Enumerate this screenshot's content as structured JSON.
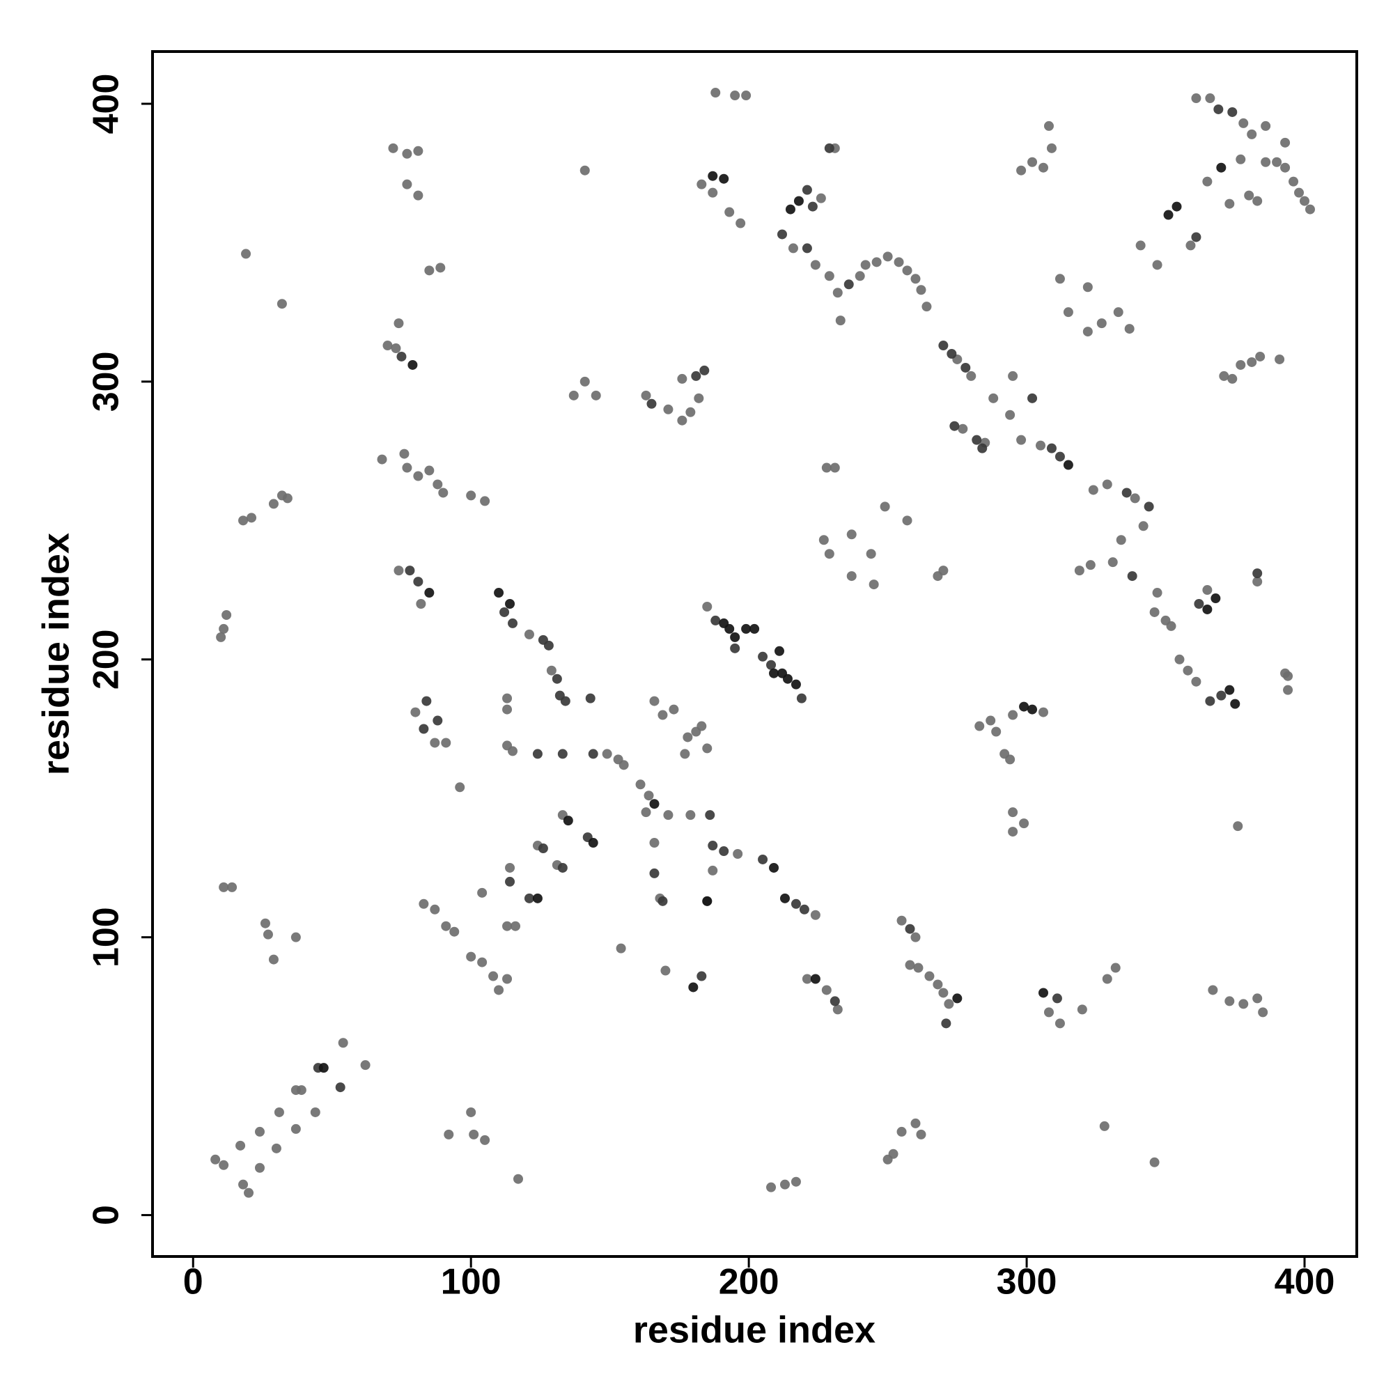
{
  "chart_data": {
    "type": "scatter",
    "x_label": "residue index",
    "y_label": "residue index",
    "xlim": [
      -14.6,
      418.8
    ],
    "ylim": [
      -14.9,
      418.8
    ],
    "xticks": [
      0,
      100,
      200,
      300,
      400
    ],
    "yticks": [
      0,
      100,
      200,
      300,
      400
    ],
    "series": [
      {
        "color": "#6e6e6e",
        "x": [
          8,
          11,
          17,
          18,
          20,
          24,
          24,
          30,
          31,
          37,
          37,
          39,
          44,
          54,
          62,
          92,
          100,
          101,
          105,
          117,
          208,
          213,
          217,
          250,
          252,
          255,
          260,
          262,
          328,
          346,
          11,
          14,
          26,
          27,
          29,
          37,
          83,
          87,
          91,
          94,
          100,
          104,
          108,
          110,
          113,
          113,
          116,
          104,
          114,
          124,
          131,
          133,
          154,
          170,
          185,
          187,
          168,
          166,
          163,
          161,
          164,
          171,
          179,
          196,
          224,
          221,
          228,
          232,
          255,
          260,
          258,
          261,
          265,
          268,
          270,
          272,
          308,
          312,
          320,
          329,
          332,
          367,
          373,
          378,
          383,
          385,
          96,
          80,
          87,
          91,
          113,
          115,
          113,
          113,
          129,
          149,
          153,
          155,
          121,
          74,
          82,
          166,
          169,
          173,
          178,
          181,
          185,
          177,
          183,
          185,
          283,
          287,
          289,
          292,
          294,
          295,
          306,
          295,
          299,
          295,
          376,
          355,
          358,
          361,
          393,
          394,
          394,
          347,
          346,
          350,
          352,
          365,
          383,
          11,
          10,
          12,
          18,
          21,
          29,
          32,
          34,
          19,
          32,
          68,
          76,
          77,
          81,
          85,
          88,
          90,
          100,
          105,
          70,
          74,
          73,
          85,
          89,
          72,
          77,
          81,
          77,
          81,
          137,
          141,
          145,
          141,
          163,
          171,
          176,
          179,
          182,
          176,
          188,
          195,
          199,
          183,
          187,
          193,
          197,
          216,
          226,
          231,
          224,
          229,
          232,
          233,
          240,
          242,
          246,
          250,
          254,
          257,
          260,
          262,
          264,
          275,
          280,
          277,
          285,
          288,
          294,
          295,
          298,
          305,
          228,
          231,
          227,
          229,
          237,
          237,
          244,
          245,
          249,
          257,
          268,
          270,
          298,
          302,
          306,
          309,
          308,
          312,
          315,
          322,
          322,
          327,
          333,
          337,
          319,
          323,
          324,
          329,
          331,
          334,
          339,
          342,
          341,
          347,
          359,
          361,
          366,
          378,
          381,
          386,
          377,
          365,
          380,
          383,
          386,
          390,
          393,
          396,
          398,
          400,
          402,
          393,
          373,
          371,
          374,
          377,
          381,
          384,
          391
        ],
        "values": [
          20,
          18,
          25,
          11,
          8,
          17,
          30,
          24,
          37,
          31,
          45,
          45,
          37,
          62,
          54,
          29,
          37,
          29,
          27,
          13,
          10,
          11,
          12,
          20,
          22,
          30,
          33,
          29,
          32,
          19,
          118,
          118,
          105,
          101,
          92,
          100,
          112,
          110,
          104,
          102,
          93,
          91,
          86,
          81,
          85,
          104,
          104,
          116,
          125,
          133,
          126,
          144,
          96,
          88,
          113,
          124,
          114,
          134,
          145,
          155,
          151,
          144,
          144,
          130,
          108,
          85,
          81,
          74,
          106,
          100,
          90,
          89,
          86,
          83,
          80,
          76,
          73,
          69,
          74,
          85,
          89,
          81,
          77,
          76,
          78,
          73,
          154,
          181,
          170,
          170,
          169,
          167,
          186,
          182,
          196,
          166,
          164,
          162,
          209,
          232,
          220,
          185,
          180,
          182,
          172,
          174,
          168,
          166,
          176,
          219,
          176,
          178,
          174,
          166,
          164,
          180,
          181,
          145,
          141,
          138,
          140,
          200,
          196,
          192,
          195,
          194,
          189,
          224,
          217,
          214,
          212,
          225,
          228,
          211,
          208,
          216,
          250,
          251,
          256,
          259,
          258,
          346,
          328,
          272,
          274,
          269,
          266,
          268,
          263,
          260,
          259,
          257,
          313,
          321,
          312,
          340,
          341,
          384,
          382,
          383,
          371,
          367,
          295,
          300,
          295,
          376,
          295,
          290,
          286,
          289,
          294,
          301,
          404,
          403,
          403,
          371,
          368,
          361,
          357,
          348,
          366,
          384,
          342,
          338,
          332,
          322,
          338,
          342,
          343,
          345,
          343,
          340,
          337,
          333,
          327,
          308,
          302,
          283,
          278,
          294,
          288,
          302,
          279,
          277,
          269,
          269,
          243,
          238,
          245,
          230,
          238,
          227,
          255,
          250,
          230,
          232,
          376,
          379,
          377,
          384,
          392,
          337,
          325,
          334,
          318,
          321,
          325,
          319,
          232,
          234,
          261,
          263,
          235,
          243,
          258,
          248,
          349,
          342,
          349,
          402,
          402,
          393,
          389,
          392,
          380,
          372,
          367,
          365,
          379,
          379,
          377,
          372,
          368,
          365,
          362,
          386,
          364,
          302,
          301,
          306,
          307,
          309,
          308
        ]
      },
      {
        "color": "#3a3a3a",
        "x": [
          188,
          195,
          205,
          208,
          219,
          112,
          115,
          126,
          128,
          132,
          134,
          143,
          144,
          131,
          78,
          81,
          84,
          83,
          88,
          124,
          133,
          121,
          114,
          133,
          126,
          142,
          186,
          187,
          191,
          205,
          217,
          220,
          231,
          183,
          169,
          166,
          165,
          184,
          181,
          212,
          221,
          223,
          229,
          221,
          236,
          270,
          273,
          278,
          274,
          282,
          284,
          302,
          309,
          312,
          336,
          344,
          338,
          361,
          369,
          374,
          370,
          366,
          362,
          383,
          271,
          258,
          311,
          75,
          45,
          53
        ],
        "values": [
          214,
          204,
          201,
          198,
          186,
          217,
          213,
          207,
          205,
          187,
          185,
          186,
          166,
          193,
          232,
          228,
          185,
          175,
          178,
          166,
          166,
          114,
          120,
          125,
          132,
          136,
          144,
          133,
          131,
          128,
          112,
          110,
          77,
          86,
          113,
          123,
          292,
          304,
          302,
          353,
          369,
          363,
          384,
          348,
          335,
          313,
          310,
          305,
          284,
          279,
          276,
          294,
          276,
          273,
          260,
          255,
          230,
          352,
          398,
          397,
          187,
          185,
          220,
          231,
          69,
          103,
          78,
          309,
          53,
          46
        ]
      },
      {
        "color": "#141414",
        "x": [
          191,
          193,
          195,
          199,
          202,
          209,
          211,
          212,
          214,
          217,
          110,
          114,
          85,
          79,
          187,
          191,
          215,
          218,
          351,
          354,
          373,
          375,
          299,
          306,
          224,
          275,
          213,
          209,
          124,
          135,
          144,
          180,
          370,
          365,
          368,
          47,
          166,
          185,
          302,
          315
        ],
        "values": [
          213,
          211,
          208,
          211,
          211,
          195,
          203,
          195,
          193,
          191,
          224,
          220,
          224,
          306,
          374,
          373,
          362,
          365,
          360,
          363,
          189,
          184,
          183,
          80,
          85,
          78,
          114,
          125,
          114,
          142,
          134,
          82,
          377,
          218,
          222,
          53,
          148,
          113,
          182,
          270
        ]
      }
    ]
  }
}
